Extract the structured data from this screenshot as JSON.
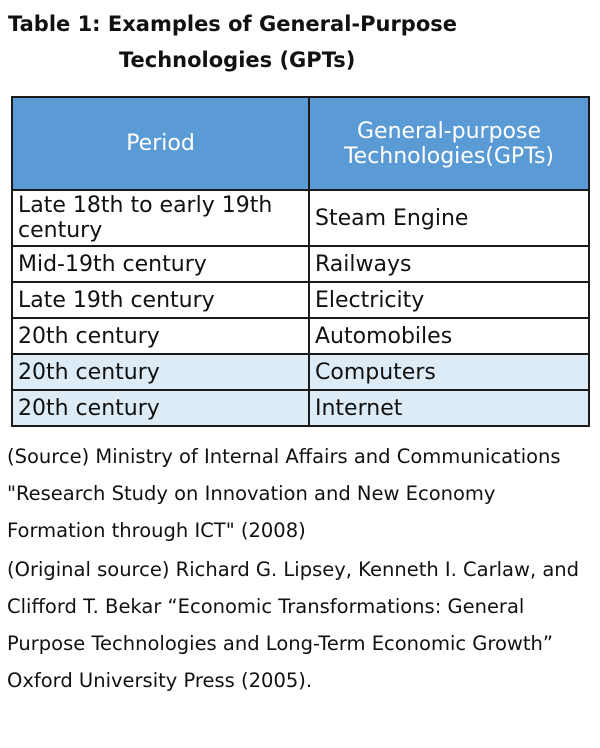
{
  "title": {
    "line1": "Table 1: Examples of General-Purpose",
    "line2": "Technologies (GPTs)"
  },
  "table": {
    "headers": [
      "Period",
      "General-purpose Technologies(GPTs)"
    ],
    "rows": [
      [
        "Late 18th to early 19th century",
        "Steam Engine"
      ],
      [
        "Mid-19th century",
        "Railways"
      ],
      [
        "Late 19th century",
        "Electricity"
      ],
      [
        "20th century",
        "Automobiles"
      ],
      [
        "20th century",
        "Computers"
      ],
      [
        "20th century",
        "Internet"
      ]
    ],
    "header_color": "#5b9bd5",
    "highlight_color": "#ddebf7"
  },
  "notes": {
    "source": "(Source) Ministry of Internal Affairs and Communications \"Research Study on Innovation and New Economy Formation through ICT\" (2008)",
    "original_source": "(Original source) Richard G. Lipsey, Kenneth I. Carlaw, and Clifford T. Bekar “Economic Transformations: General Purpose Technologies and Long-Term Economic Growth” Oxford University Press (2005)."
  }
}
